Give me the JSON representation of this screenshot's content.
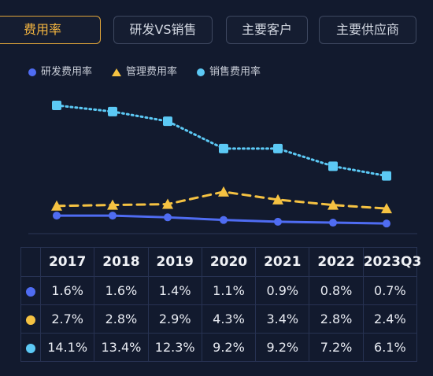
{
  "tabs": [
    {
      "label": "费用率",
      "active": true
    },
    {
      "label": "研发VS销售",
      "active": false
    },
    {
      "label": "主要客户",
      "active": false
    },
    {
      "label": "主要供应商",
      "active": false
    }
  ],
  "colors": {
    "rd": "#4f6cf2",
    "admin": "#f5c242",
    "sales": "#5cc9f5",
    "active_tab": "#f2b440"
  },
  "chart_data": {
    "type": "line",
    "categories": [
      "2017",
      "2018",
      "2019",
      "2020",
      "2021",
      "2022",
      "2023Q3"
    ],
    "series": [
      {
        "name": "研发费用率",
        "marker": "circle",
        "line": "solid",
        "values": [
          1.6,
          1.6,
          1.4,
          1.1,
          0.9,
          0.8,
          0.7
        ],
        "labels": [
          "1.6%",
          "1.6%",
          "1.4%",
          "1.1%",
          "0.9%",
          "0.8%",
          "0.7%"
        ]
      },
      {
        "name": "管理费用率",
        "marker": "triangle",
        "line": "dashed",
        "values": [
          2.7,
          2.8,
          2.9,
          4.3,
          3.4,
          2.8,
          2.4
        ],
        "labels": [
          "2.7%",
          "2.8%",
          "2.9%",
          "4.3%",
          "3.4%",
          "2.8%",
          "2.4%"
        ]
      },
      {
        "name": "销售费用率",
        "marker": "square",
        "line": "dotted",
        "values": [
          14.1,
          13.4,
          12.3,
          9.2,
          9.2,
          7.2,
          6.1
        ],
        "labels": [
          "14.1%",
          "13.4%",
          "12.3%",
          "9.2%",
          "9.2%",
          "7.2%",
          "6.1%"
        ]
      }
    ],
    "ylim": [
      0,
      14.1
    ],
    "legend_position": "top-left",
    "grid": false
  }
}
